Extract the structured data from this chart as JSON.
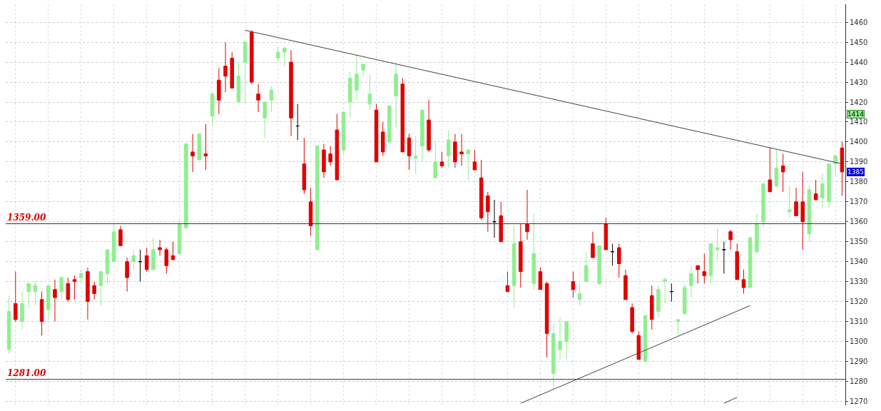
{
  "chart_data": {
    "type": "candlestick",
    "categories": [
      null,
      null,
      null,
      null,
      null,
      null,
      null,
      null,
      null,
      null,
      null,
      null,
      null,
      null,
      null,
      null,
      null,
      null,
      null,
      null,
      null,
      null,
      null,
      null,
      null,
      null,
      null,
      null,
      null,
      null,
      null,
      null,
      null,
      null,
      null,
      null,
      null,
      null,
      null,
      null,
      null,
      null,
      null,
      null,
      null,
      null,
      null,
      null,
      null,
      null,
      null,
      null,
      null,
      null,
      null,
      null,
      null,
      null,
      null,
      null,
      null,
      null,
      null,
      null,
      null,
      null,
      null,
      null,
      null,
      null,
      null,
      null,
      null,
      null,
      null,
      null,
      null,
      null,
      null,
      null,
      null,
      null,
      null,
      null,
      null,
      null,
      null,
      null,
      null,
      null,
      null,
      null,
      null,
      null,
      null,
      null,
      null,
      null,
      null,
      null,
      null,
      null,
      null,
      null,
      null,
      null,
      null,
      null,
      null,
      null,
      null,
      null,
      null,
      null,
      null,
      null,
      null,
      null,
      null,
      null,
      null,
      null,
      null,
      null,
      null,
      null,
      null,
      null
    ],
    "ohlc": [
      [
        1296,
        1323,
        1294,
        1315
      ],
      [
        1319,
        1335,
        1310,
        1311
      ],
      [
        1310,
        1325,
        1306,
        1319
      ],
      [
        1325,
        1329,
        1317,
        1329
      ],
      [
        1325,
        1330,
        1318,
        1328
      ],
      [
        1321,
        1325,
        1303,
        1310
      ],
      [
        1316,
        1328,
        1311,
        1328
      ],
      [
        1326,
        1331,
        1310,
        1322
      ],
      [
        1325,
        1333,
        1321,
        1332
      ],
      [
        1329,
        1332,
        1320,
        1321
      ],
      [
        1331,
        1333,
        1321,
        1330
      ],
      [
        1332,
        1336,
        1329,
        1334
      ],
      [
        1335,
        1337,
        1311,
        1320
      ],
      [
        1328,
        1330,
        1321,
        1324
      ],
      [
        1328,
        1335,
        1318,
        1335
      ],
      [
        1334,
        1346,
        1329,
        1346
      ],
      [
        1340,
        1359,
        1340,
        1355
      ],
      [
        1356,
        1358,
        1348,
        1348
      ],
      [
        1340,
        1342,
        1325,
        1332
      ],
      [
        1340,
        1346,
        1336,
        1343
      ],
      [
        1340,
        1346,
        1330,
        1340
      ],
      [
        1343,
        1347,
        1335,
        1336
      ],
      [
        1336,
        1352,
        1336,
        1346
      ],
      [
        1347,
        1351,
        1343,
        1346
      ],
      [
        1346,
        1347,
        1334,
        1338
      ],
      [
        1343,
        1350,
        1341,
        1341
      ],
      [
        1344,
        1361,
        1344,
        1359
      ],
      [
        1357,
        1399,
        1357,
        1399
      ],
      [
        1395,
        1404,
        1385,
        1393
      ],
      [
        1391,
        1404,
        1391,
        1404
      ],
      [
        1394,
        1409,
        1386,
        1393
      ],
      [
        1413,
        1425,
        1408,
        1424
      ],
      [
        1431,
        1437,
        1414,
        1421
      ],
      [
        1438,
        1450,
        1425,
        1433
      ],
      [
        1442,
        1445,
        1427,
        1427
      ],
      [
        1420,
        1440,
        1420,
        1433
      ],
      [
        1440,
        1451,
        1419,
        1450
      ],
      [
        1455,
        1456,
        1429,
        1430
      ],
      [
        1424,
        1429,
        1415,
        1421
      ],
      [
        1412,
        1420,
        1402,
        1420
      ],
      [
        1421,
        1428,
        1415,
        1426
      ],
      [
        1442,
        1448,
        1440,
        1445
      ],
      [
        1445,
        1448,
        1438,
        1447
      ],
      [
        1440,
        1446,
        1403,
        1412
      ],
      [
        1408,
        1419,
        1401,
        1408
      ],
      [
        1389,
        1402,
        1374,
        1376
      ],
      [
        1370,
        1377,
        1353,
        1358
      ],
      [
        1346,
        1398,
        1346,
        1398
      ],
      [
        1396,
        1399,
        1382,
        1385
      ],
      [
        1394,
        1398,
        1388,
        1390
      ],
      [
        1406,
        1414,
        1381,
        1381
      ],
      [
        1396,
        1415,
        1394,
        1415
      ],
      [
        1420,
        1435,
        1412,
        1432
      ],
      [
        1426,
        1444,
        1421,
        1434
      ],
      [
        1436,
        1439,
        1433,
        1439
      ],
      [
        1419,
        1434,
        1416,
        1424
      ],
      [
        1416,
        1419,
        1390,
        1390
      ],
      [
        1405,
        1410,
        1393,
        1395
      ],
      [
        1400,
        1418,
        1399,
        1418
      ],
      [
        1423,
        1440,
        1407,
        1434
      ],
      [
        1429,
        1432,
        1395,
        1395
      ],
      [
        1402,
        1404,
        1386,
        1393
      ],
      [
        1392,
        1403,
        1384,
        1393
      ],
      [
        1398,
        1416,
        1390,
        1416
      ],
      [
        1411,
        1421,
        1395,
        1396
      ],
      [
        1382,
        1400,
        1382,
        1390
      ],
      [
        1390,
        1395,
        1387,
        1388
      ],
      [
        1393,
        1406,
        1387,
        1401
      ],
      [
        1400,
        1404,
        1387,
        1390
      ],
      [
        1395,
        1404,
        1388,
        1394
      ],
      [
        1394,
        1396,
        1381,
        1396
      ],
      [
        1390,
        1396,
        1386,
        1386
      ],
      [
        1382,
        1391,
        1361,
        1362
      ],
      [
        1373,
        1375,
        1355,
        1365
      ],
      [
        1360,
        1371,
        1352,
        1360
      ],
      [
        1363,
        1370,
        1350,
        1350
      ],
      [
        1328,
        1335,
        1325,
        1325
      ],
      [
        1328,
        1358,
        1317,
        1349
      ],
      [
        1350,
        1359,
        1327,
        1335
      ],
      [
        1359,
        1376,
        1351,
        1355
      ],
      [
        1329,
        1364,
        1326,
        1344
      ],
      [
        1335,
        1337,
        1326,
        1326
      ],
      [
        1329,
        1330,
        1292,
        1304
      ],
      [
        1284,
        1309,
        1276,
        1304
      ],
      [
        1296,
        1312,
        1291,
        1300
      ],
      [
        1300,
        1310,
        1291,
        1310
      ],
      [
        1330,
        1335,
        1322,
        1326
      ],
      [
        1321,
        1329,
        1318,
        1324
      ],
      [
        1330,
        1345,
        1330,
        1338
      ],
      [
        1349,
        1355,
        1342,
        1342
      ],
      [
        1329,
        1348,
        1328,
        1348
      ],
      [
        1359,
        1362,
        1346,
        1346
      ],
      [
        1345,
        1349,
        1338,
        1345
      ],
      [
        1347,
        1349,
        1332,
        1339
      ],
      [
        1333,
        1336,
        1321,
        1321
      ],
      [
        1317,
        1319,
        1304,
        1305
      ],
      [
        1303,
        1305,
        1291,
        1291
      ],
      [
        1290,
        1313,
        1290,
        1313
      ],
      [
        1323,
        1328,
        1306,
        1311
      ],
      [
        1315,
        1328,
        1312,
        1326
      ],
      [
        1330,
        1332,
        1319,
        1331
      ],
      [
        1325,
        1329,
        1320,
        1325
      ],
      [
        1310,
        1311,
        1303,
        1311
      ],
      [
        1314,
        1329,
        1313,
        1327
      ],
      [
        1328,
        1338,
        1322,
        1334
      ],
      [
        1338,
        1338,
        1329,
        1336
      ],
      [
        1335,
        1344,
        1329,
        1333
      ],
      [
        1333,
        1349,
        1329,
        1349
      ],
      [
        1346,
        1357,
        1341,
        1347
      ],
      [
        1346,
        1350,
        1334,
        1346
      ],
      [
        1355,
        1356,
        1346,
        1351
      ],
      [
        1345,
        1349,
        1331,
        1331
      ],
      [
        1331,
        1336,
        1324,
        1327
      ],
      [
        1327,
        1352,
        1327,
        1352
      ],
      [
        1345,
        1364,
        1344,
        1359
      ],
      [
        1360,
        1379,
        1357,
        1379
      ],
      [
        1381,
        1397,
        1375,
        1375
      ],
      [
        1378,
        1396,
        1377,
        1387
      ],
      [
        1388,
        1394,
        1375,
        1385
      ],
      [
        1365,
        1378,
        1362,
        1366
      ],
      [
        1370,
        1377,
        1363,
        1363
      ],
      [
        1370,
        1385,
        1346,
        1360
      ],
      [
        1354,
        1378,
        1350,
        1376
      ],
      [
        1374,
        1381,
        1371,
        1371
      ],
      [
        1372,
        1384,
        1367,
        1379
      ],
      [
        1370,
        1389,
        1367,
        1389
      ],
      [
        1389,
        1394,
        1383,
        1393
      ],
      [
        1397,
        1400,
        1373,
        1385
      ]
    ],
    "colors": [
      "#90ee90",
      "#e00000",
      "#90ee90",
      "#90ee90",
      "#90ee90",
      "#e00000",
      "#90ee90",
      "#e00000",
      "#90ee90",
      "#e00000",
      "#e00000",
      "#90ee90",
      "#e00000",
      "#e00000",
      "#90ee90",
      "#90ee90",
      "#90ee90",
      "#e00000",
      "#e00000",
      "#90ee90",
      "#000000",
      "#e00000",
      "#90ee90",
      "#e00000",
      "#e00000",
      "#e00000",
      "#90ee90",
      "#90ee90",
      "#e00000",
      "#90ee90",
      "#e00000",
      "#90ee90",
      "#e00000",
      "#e00000",
      "#e00000",
      "#90ee90",
      "#90ee90",
      "#e00000",
      "#e00000",
      "#90ee90",
      "#90ee90",
      "#90ee90",
      "#90ee90",
      "#e00000",
      "#000000",
      "#e00000",
      "#e00000",
      "#90ee90",
      "#e00000",
      "#e00000",
      "#e00000",
      "#90ee90",
      "#90ee90",
      "#90ee90",
      "#90ee90",
      "#90ee90",
      "#e00000",
      "#e00000",
      "#90ee90",
      "#90ee90",
      "#e00000",
      "#e00000",
      "#90ee90",
      "#90ee90",
      "#e00000",
      "#90ee90",
      "#e00000",
      "#90ee90",
      "#e00000",
      "#e00000",
      "#90ee90",
      "#e00000",
      "#e00000",
      "#e00000",
      "#000000",
      "#e00000",
      "#e00000",
      "#90ee90",
      "#e00000",
      "#e00000",
      "#90ee90",
      "#e00000",
      "#e00000",
      "#90ee90",
      "#90ee90",
      "#90ee90",
      "#e00000",
      "#90ee90",
      "#90ee90",
      "#e00000",
      "#90ee90",
      "#e00000",
      "#000000",
      "#e00000",
      "#e00000",
      "#e00000",
      "#e00000",
      "#90ee90",
      "#e00000",
      "#90ee90",
      "#90ee90",
      "#000000",
      "#90ee90",
      "#90ee90",
      "#90ee90",
      "#e00000",
      "#e00000",
      "#90ee90",
      "#90ee90",
      "#000000",
      "#e00000",
      "#e00000",
      "#e00000",
      "#90ee90",
      "#90ee90",
      "#90ee90",
      "#e00000",
      "#90ee90",
      "#e00000",
      "#90ee90",
      "#e00000",
      "#e00000",
      "#90ee90",
      "#e00000",
      "#90ee90",
      "#90ee90",
      "#90ee90",
      "#e00000"
    ],
    "series": [
      {
        "type": "line",
        "color": "#404040",
        "values": [
          null,
          null,
          null,
          null,
          null,
          null,
          null,
          null,
          null,
          null,
          null,
          null,
          null,
          null,
          null,
          null,
          null,
          null,
          null,
          null,
          null,
          null,
          null,
          null,
          null,
          null,
          null,
          null,
          null,
          null,
          null,
          null,
          null,
          null,
          null,
          null,
          1456,
          null,
          null,
          null,
          null,
          null,
          null,
          null,
          null,
          null,
          null,
          null,
          null,
          null,
          null,
          null,
          null,
          null,
          null,
          null,
          null,
          null,
          null,
          null,
          null,
          null,
          null,
          null,
          null,
          null,
          null,
          null,
          null,
          null,
          null,
          null,
          null,
          null,
          null,
          null,
          null,
          null,
          null,
          null,
          null,
          null,
          null,
          null,
          null,
          null,
          null,
          null,
          null,
          null,
          null,
          null,
          null,
          null,
          null,
          null,
          null,
          null,
          null,
          null,
          null,
          null,
          null,
          null,
          null,
          null,
          null,
          null,
          null,
          null,
          null,
          null,
          null,
          null,
          null,
          null,
          null,
          null,
          null,
          null,
          null,
          null,
          null,
          null,
          null,
          null,
          null,
          1389
        ]
      },
      {
        "type": "line",
        "color": "#404040",
        "values": [
          null,
          null,
          null,
          null,
          null,
          null,
          null,
          null,
          null,
          null,
          null,
          null,
          null,
          null,
          null,
          null,
          null,
          null,
          null,
          null,
          null,
          null,
          null,
          null,
          null,
          null,
          null,
          null,
          null,
          null,
          null,
          null,
          null,
          null,
          null,
          null,
          null,
          null,
          null,
          null,
          null,
          null,
          null,
          null,
          null,
          null,
          null,
          null,
          null,
          null,
          null,
          null,
          null,
          null,
          null,
          null,
          null,
          null,
          null,
          null,
          null,
          null,
          null,
          null,
          null,
          null,
          null,
          null,
          null,
          null,
          null,
          null,
          null,
          null,
          null,
          null,
          null,
          null,
          1269,
          null,
          null,
          null,
          null,
          null,
          null,
          null,
          null,
          null,
          null,
          null,
          null,
          null,
          null,
          null,
          null,
          null,
          null,
          null,
          null,
          null,
          null,
          null,
          null,
          null,
          null,
          null,
          null,
          null,
          null,
          null,
          null,
          null,
          null,
          1318,
          null,
          null,
          null,
          null,
          null,
          null,
          null,
          null,
          null,
          null,
          null,
          null,
          null,
          null
        ]
      },
      {
        "type": "line",
        "color": "#404040",
        "values": [
          null,
          null,
          null,
          null,
          null,
          null,
          null,
          null,
          null,
          null,
          null,
          null,
          null,
          null,
          null,
          null,
          null,
          null,
          null,
          null,
          null,
          null,
          null,
          null,
          null,
          null,
          null,
          null,
          null,
          null,
          null,
          null,
          null,
          null,
          null,
          null,
          null,
          null,
          null,
          null,
          null,
          null,
          null,
          null,
          null,
          null,
          null,
          null,
          null,
          null,
          null,
          null,
          null,
          null,
          null,
          null,
          null,
          null,
          null,
          null,
          null,
          null,
          null,
          null,
          null,
          null,
          null,
          null,
          null,
          null,
          null,
          null,
          null,
          null,
          null,
          null,
          null,
          null,
          null,
          null,
          null,
          null,
          null,
          null,
          null,
          null,
          null,
          null,
          null,
          null,
          null,
          null,
          null,
          null,
          null,
          null,
          null,
          null,
          null,
          null,
          null,
          null,
          null,
          null,
          null,
          null,
          null,
          null,
          null,
          1269,
          null,
          1272,
          null,
          null,
          null,
          null,
          null,
          null,
          null,
          null,
          null,
          null,
          null,
          null,
          null,
          null,
          null,
          null
        ]
      }
    ],
    "ref_lines": [
      {
        "axis": "y",
        "value": 1359,
        "label": "1359.00",
        "color": "#333333"
      },
      {
        "axis": "y",
        "value": 1281,
        "label": "1281.00",
        "color": "#333333"
      }
    ],
    "annotations": [
      {
        "text": "1414",
        "y": 1414
      },
      {
        "text": "1385",
        "y": 1385
      }
    ],
    "ylim": [
      1268,
      1469
    ],
    "yticks": [
      1270,
      1280,
      1290,
      1300,
      1310,
      1320,
      1330,
      1340,
      1350,
      1360,
      1370,
      1380,
      1390,
      1400,
      1410,
      1420,
      1430,
      1440,
      1450,
      1460
    ],
    "grid": true,
    "tick_labels": "y"
  }
}
